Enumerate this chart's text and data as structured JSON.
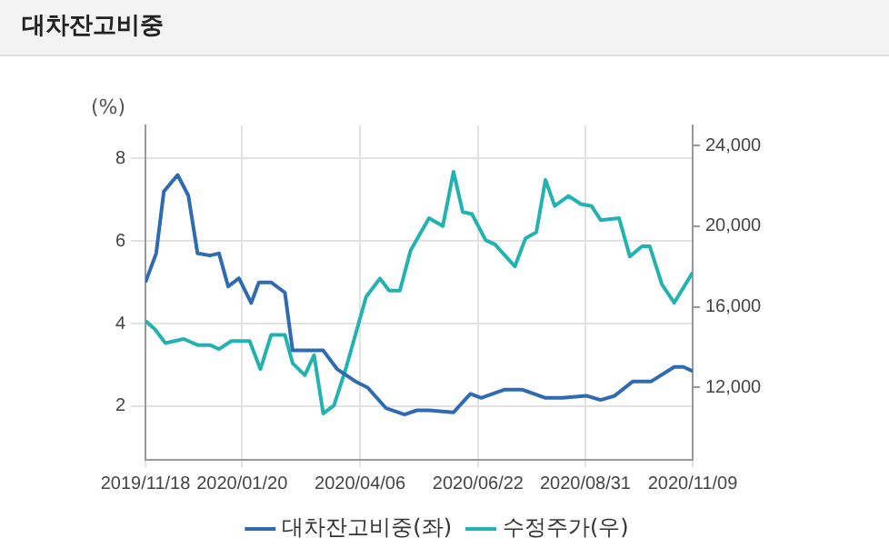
{
  "chart_data": {
    "type": "line",
    "title": "대차잔고비중",
    "ylabel": "(%)",
    "xlim": [
      "2019-11-18",
      "2020-11-09"
    ],
    "xticks": [
      {
        "value": "2019-11-18",
        "label": "2019/11/18"
      },
      {
        "value": "2020-01-20",
        "label": "2020/01/20"
      },
      {
        "value": "2020-04-06",
        "label": "2020/04/06"
      },
      {
        "value": "2020-06-22",
        "label": "2020/06/22"
      },
      {
        "value": "2020-08-31",
        "label": "2020/08/31"
      },
      {
        "value": "2020-11-09",
        "label": "2020/11/09"
      }
    ],
    "ylim": [
      0.7,
      8.8
    ],
    "yticks": [
      2,
      4,
      6,
      8
    ],
    "y2lim": [
      8400,
      25000
    ],
    "y2ticks": [
      {
        "value": 12000,
        "label": "12,000"
      },
      {
        "value": 16000,
        "label": "16,000"
      },
      {
        "value": 20000,
        "label": "20,000"
      },
      {
        "value": 24000,
        "label": "24,000"
      }
    ],
    "grid": true,
    "legend": "bottom",
    "marker": "none",
    "line_style": "solid",
    "series": [
      {
        "name": "대차잔고비중(좌)",
        "color": "#2f6bb0",
        "x": [
          "2019-11-18",
          "2019-11-25",
          "2019-11-30",
          "2019-12-09",
          "2019-12-16",
          "2019-12-22",
          "2019-12-30",
          "2020-01-05",
          "2020-01-11",
          "2020-01-18",
          "2020-01-26",
          "2020-01-31",
          "2020-02-08",
          "2020-02-17",
          "2020-02-22",
          "2020-03-13",
          "2020-03-22",
          "2020-04-03",
          "2020-04-11",
          "2020-04-23",
          "2020-05-05",
          "2020-05-13",
          "2020-05-21",
          "2020-06-06",
          "2020-06-17",
          "2020-06-24",
          "2020-07-09",
          "2020-07-21",
          "2020-08-05",
          "2020-08-16",
          "2020-09-01",
          "2020-09-10",
          "2020-09-19",
          "2020-10-01",
          "2020-10-13",
          "2020-10-28",
          "2020-11-03",
          "2020-11-09"
        ],
        "values": [
          5.0,
          5.7,
          7.2,
          7.6,
          7.1,
          5.7,
          5.65,
          5.7,
          4.9,
          5.1,
          4.5,
          5.0,
          5.0,
          4.75,
          3.35,
          3.35,
          2.9,
          2.6,
          2.45,
          1.95,
          1.8,
          1.9,
          1.9,
          1.85,
          2.3,
          2.2,
          2.4,
          2.4,
          2.2,
          2.2,
          2.25,
          2.15,
          2.25,
          2.6,
          2.6,
          2.95,
          2.95,
          2.85
        ]
      },
      {
        "name": "수정주가(우)",
        "color": "#22b3b0",
        "axis": "y2",
        "x": [
          "2019-11-18",
          "2019-11-24",
          "2019-12-01",
          "2019-12-13",
          "2019-12-22",
          "2019-12-30",
          "2020-01-05",
          "2020-01-13",
          "2020-01-25",
          "2020-02-01",
          "2020-02-08",
          "2020-02-17",
          "2020-02-22",
          "2020-03-01",
          "2020-03-07",
          "2020-03-13",
          "2020-03-20",
          "2020-03-28",
          "2020-04-10",
          "2020-04-19",
          "2020-04-25",
          "2020-05-02",
          "2020-05-09",
          "2020-05-21",
          "2020-05-30",
          "2020-06-06",
          "2020-06-12",
          "2020-06-18",
          "2020-06-27",
          "2020-07-03",
          "2020-07-16",
          "2020-07-23",
          "2020-07-30",
          "2020-08-05",
          "2020-08-11",
          "2020-08-20",
          "2020-08-28",
          "2020-09-04",
          "2020-09-10",
          "2020-09-22",
          "2020-09-29",
          "2020-10-07",
          "2020-10-12",
          "2020-10-20",
          "2020-10-28",
          "2020-11-09"
        ],
        "values": [
          15300,
          14900,
          14200,
          14400,
          14100,
          14100,
          13900,
          14300,
          14300,
          12900,
          14600,
          14600,
          13200,
          12600,
          13600,
          10700,
          11100,
          13000,
          16500,
          17400,
          16800,
          16800,
          18800,
          20400,
          20000,
          22700,
          20700,
          20600,
          19300,
          19100,
          18000,
          19400,
          19700,
          22300,
          21000,
          21500,
          21100,
          21000,
          20300,
          20400,
          18500,
          19000,
          19000,
          17100,
          16200,
          17700
        ]
      }
    ]
  }
}
